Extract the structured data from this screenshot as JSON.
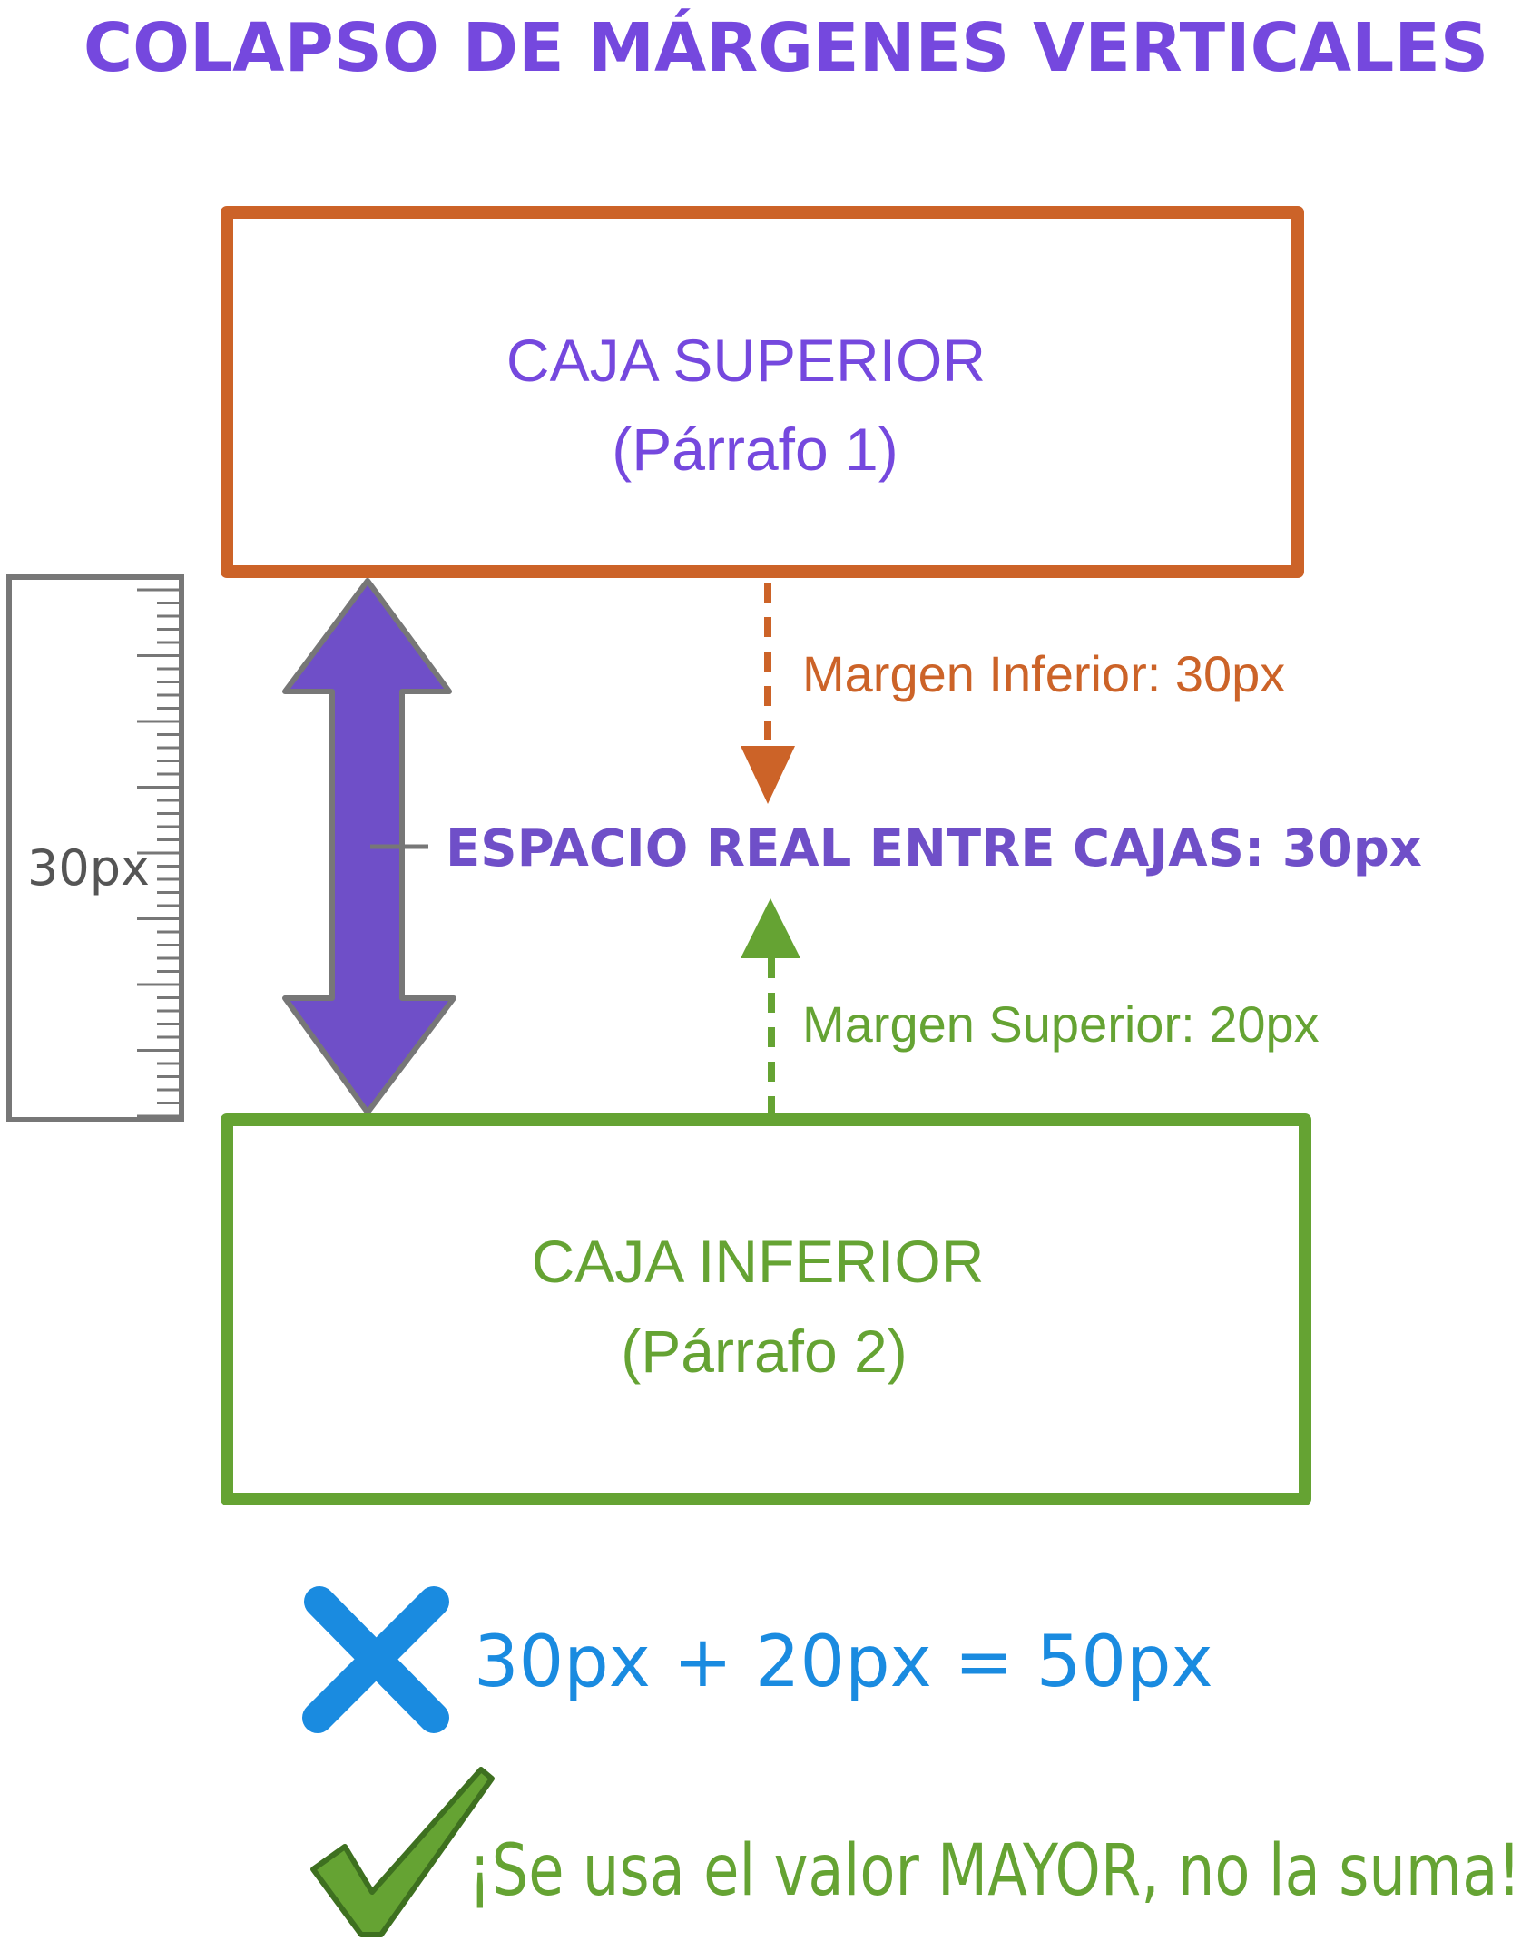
{
  "title": "COLAPSO DE MÁRGENES VERTICALES",
  "top_box": {
    "line1": "CAJA SUPERIOR",
    "line2": "(Párrafo 1)",
    "border_color": "#CC6328",
    "text_color": "#7548DE"
  },
  "bottom_box": {
    "line1": "CAJA INFERIOR",
    "line2": "(Párrafo 2)",
    "border_color": "#65A333",
    "text_color": "#65A333"
  },
  "ruler": {
    "label": "30px",
    "color": "#777777"
  },
  "margin_bottom_label": "Margen Inferior: 30px",
  "margin_top_label": "Margen Superior: 20px",
  "real_space_label": "ESPACIO REAL ENTRE CAJAS: 30px",
  "wrong": {
    "icon": "x-mark-icon",
    "text": "30px + 20px = 50px",
    "color": "#1A8BE0"
  },
  "right": {
    "icon": "check-mark-icon",
    "text": "¡Se usa el valor MAYOR, no la suma!",
    "color": "#65A333"
  },
  "colors": {
    "purple": "#6F4FC8",
    "orange": "#CC6328",
    "green": "#65A333",
    "blue": "#1A8BE0"
  }
}
